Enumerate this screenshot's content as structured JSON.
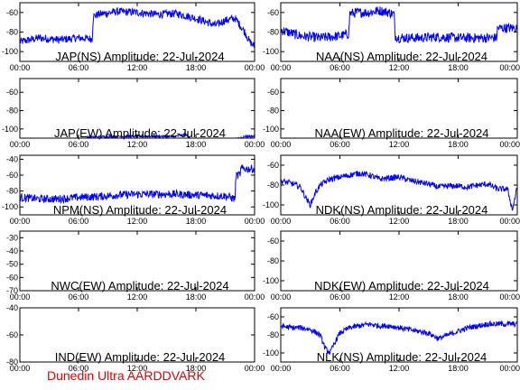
{
  "footer": "Dunedin Ultra AARDDVARK",
  "chart_data": [
    {
      "type": "line",
      "title": "JAP(NS) Amplitude: 22-Jul-2024",
      "ylim": [
        -110,
        -50
      ],
      "yticks": [
        "-60",
        "-80",
        "-100"
      ],
      "ytickvals": [
        -60,
        -80,
        -100
      ],
      "xticks": [
        "00:00",
        "06:00",
        "12:00",
        "18:00",
        "00:00"
      ],
      "xlim": [
        0,
        24
      ],
      "series": [
        {
          "color": "#0000ff",
          "x": [
            0,
            2,
            4,
            6,
            7.4,
            7.5,
            8,
            10,
            12,
            14,
            16,
            18,
            20,
            21,
            22,
            23,
            23.5,
            24
          ],
          "y": [
            -90,
            -86,
            -88,
            -86,
            -87,
            -64,
            -62,
            -59,
            -60,
            -62,
            -61,
            -66,
            -73,
            -68,
            -66,
            -80,
            -90,
            -95
          ],
          "noise": 4
        }
      ]
    },
    {
      "type": "line",
      "title": "NAA(NS) Amplitude: 22-Jul-2024",
      "ylim": [
        -110,
        -50
      ],
      "yticks": [
        "-60",
        "-80",
        "-100"
      ],
      "ytickvals": [
        -60,
        -80,
        -100
      ],
      "xticks": [
        "00:00",
        "06:00",
        "12:00",
        "18:00",
        "00:00"
      ],
      "xlim": [
        0,
        24
      ],
      "series": [
        {
          "color": "#0000ff",
          "x": [
            0,
            2,
            4,
            6,
            6.9,
            7,
            8,
            9,
            10,
            11,
            11.5,
            11.6,
            12,
            14,
            16,
            18,
            20,
            21.9,
            22,
            24
          ],
          "y": [
            -78,
            -84,
            -86,
            -84,
            -82,
            -61,
            -60,
            -60,
            -58,
            -60,
            -62,
            -84,
            -86,
            -86,
            -85,
            -86,
            -86,
            -86,
            -76,
            -76
          ],
          "noise": 5
        }
      ]
    },
    {
      "type": "line",
      "title": "JAP(EW) Amplitude: 22-Jul-2024",
      "ylim": [
        -110,
        -45
      ],
      "yticks": [
        "-60",
        "-80",
        "-100"
      ],
      "ytickvals": [
        -60,
        -80,
        -100
      ],
      "xticks": [
        "00:00",
        "06:00",
        "12:00",
        "18:00",
        "00:00"
      ],
      "xlim": [
        0,
        24
      ],
      "series": [
        {
          "color": "#0000ff",
          "x": [
            0,
            6.5,
            7,
            10,
            13,
            16,
            17,
            17.5,
            22,
            23,
            24
          ],
          "y": [
            -112,
            -112,
            -109,
            -108,
            -108,
            -108,
            -106,
            -112,
            -112,
            -108,
            -108
          ],
          "noise": 1.2
        }
      ]
    },
    {
      "type": "line",
      "title": "NAA(EW) Amplitude: 22-Jul-2024",
      "ylim": [
        -110,
        -45
      ],
      "yticks": [
        "-60",
        "-80",
        "-100"
      ],
      "ytickvals": [
        -60,
        -80,
        -100
      ],
      "xticks": [
        "00:00",
        "06:00",
        "12:00",
        "18:00",
        "00:00"
      ],
      "xlim": [
        0,
        24
      ],
      "series": []
    },
    {
      "type": "line",
      "title": "NPM(NS) Amplitude: 22-Jul-2024",
      "ylim": [
        -110,
        -35
      ],
      "yticks": [
        "-40",
        "-60",
        "-80",
        "-100"
      ],
      "ytickvals": [
        -40,
        -60,
        -80,
        -100
      ],
      "xticks": [
        "00:00",
        "06:00",
        "12:00",
        "18:00",
        "00:00"
      ],
      "xlim": [
        0,
        24
      ],
      "series": [
        {
          "color": "#0000ff",
          "x": [
            0,
            2,
            4,
            6,
            8,
            10,
            12,
            14,
            16,
            18,
            20,
            21,
            21.5,
            22,
            22.1,
            22.5,
            22.6,
            24
          ],
          "y": [
            -88,
            -90,
            -90,
            -88,
            -87,
            -85,
            -84,
            -84,
            -84,
            -85,
            -86,
            -86,
            -88,
            -90,
            -60,
            -60,
            -52,
            -52
          ],
          "noise": 5
        }
      ]
    },
    {
      "type": "line",
      "title": "NDK(NS) Amplitude: 22-Jul-2024",
      "ylim": [
        -110,
        -50
      ],
      "yticks": [
        "-60",
        "-80",
        "-100"
      ],
      "ytickvals": [
        -60,
        -80,
        -100
      ],
      "xticks": [
        "00:00",
        "06:00",
        "12:00",
        "18:00",
        "00:00"
      ],
      "xlim": [
        0,
        24
      ],
      "series": [
        {
          "color": "#0000ff",
          "x": [
            0,
            1,
            2,
            2.5,
            3,
            3.5,
            4,
            5,
            6,
            7,
            8,
            9,
            10,
            11,
            12,
            13,
            14,
            15,
            16,
            17,
            18,
            19,
            20,
            21,
            22,
            23,
            23.5,
            24
          ],
          "y": [
            -76,
            -78,
            -82,
            -92,
            -100,
            -88,
            -80,
            -74,
            -72,
            -70,
            -68,
            -70,
            -74,
            -73,
            -72,
            -75,
            -77,
            -79,
            -82,
            -81,
            -81,
            -82,
            -80,
            -79,
            -84,
            -84,
            -105,
            -82
          ],
          "noise": 3
        }
      ]
    },
    {
      "type": "line",
      "title": "NWC(EW) Amplitude: 22-Jul-2024",
      "ylim": [
        -70,
        -25
      ],
      "yticks": [
        "-30",
        "-40",
        "-50",
        "-60",
        "-70"
      ],
      "ytickvals": [
        -30,
        -40,
        -50,
        -60,
        -70
      ],
      "xticks": [
        "00:00",
        "06:00",
        "12:00",
        "18:00",
        "00:00"
      ],
      "xlim": [
        0,
        24
      ],
      "series": []
    },
    {
      "type": "line",
      "title": "NDK(EW) Amplitude: 22-Jul-2024",
      "ylim": [
        -110,
        -50
      ],
      "yticks": [
        "-60",
        "-80",
        "-100"
      ],
      "ytickvals": [
        -60,
        -80,
        -100
      ],
      "xticks": [
        "00:00",
        "06:00",
        "12:00",
        "18:00",
        "00:00"
      ],
      "xlim": [
        0,
        24
      ],
      "series": []
    },
    {
      "type": "line",
      "title": "IND(EW) Amplitude: 22-Jul-2024",
      "ylim": [
        -80,
        -40
      ],
      "yticks": [
        "-40",
        "-60",
        "-80"
      ],
      "ytickvals": [
        -40,
        -60,
        -80
      ],
      "xticks": [
        "00:00",
        "06:00",
        "12:00",
        "18:00",
        "00:00"
      ],
      "xlim": [
        0,
        24
      ],
      "series": []
    },
    {
      "type": "line",
      "title": "NLK(NS) Amplitude: 22-Jul-2024",
      "ylim": [
        -110,
        -50
      ],
      "yticks": [
        "-60",
        "-80",
        "-100"
      ],
      "ytickvals": [
        -60,
        -80,
        -100
      ],
      "xticks": [
        "00:00",
        "06:00",
        "12:00",
        "18:00",
        "00:00"
      ],
      "xlim": [
        0,
        24
      ],
      "series": [
        {
          "color": "#0000ff",
          "x": [
            0,
            1,
            2,
            3,
            4,
            4.5,
            5,
            5.5,
            6,
            7,
            8,
            9,
            10,
            11,
            12,
            13,
            14,
            15,
            16,
            17,
            18,
            19,
            20,
            21,
            22,
            23,
            24
          ],
          "y": [
            -70,
            -72,
            -72,
            -74,
            -80,
            -95,
            -100,
            -88,
            -78,
            -72,
            -70,
            -68,
            -70,
            -70,
            -72,
            -74,
            -76,
            -78,
            -84,
            -80,
            -76,
            -72,
            -70,
            -68,
            -68,
            -68,
            -68
          ],
          "noise": 3
        }
      ]
    }
  ]
}
